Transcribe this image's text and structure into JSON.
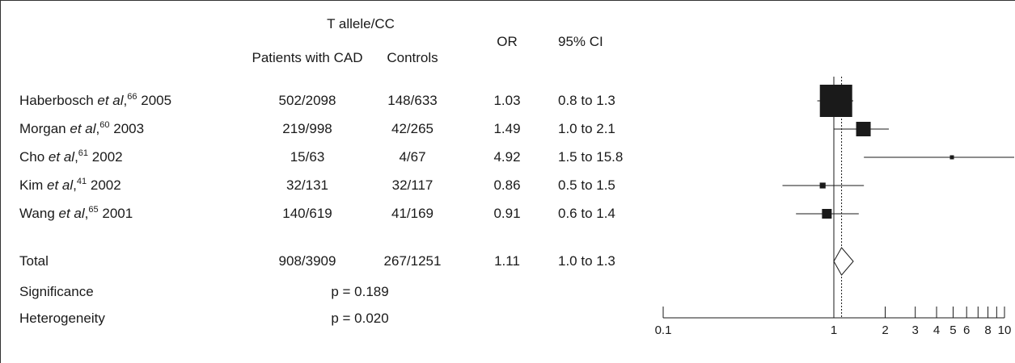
{
  "header": {
    "group_label": "T allele/CC",
    "patients_label": "Patients with CAD",
    "controls_label": "Controls",
    "or_label": "OR",
    "ci_label": "95% CI"
  },
  "studies": [
    {
      "author": "Haberbosch",
      "etal": "et al",
      "ref": "66",
      "year": "2005",
      "patients": "502/2098",
      "controls": "148/633",
      "or_text": "1.03",
      "ci_text": "0.8 to 1.3"
    },
    {
      "author": "Morgan",
      "etal": "et al",
      "ref": "60",
      "year": "2003",
      "patients": "219/998",
      "controls": "42/265",
      "or_text": "1.49",
      "ci_text": "1.0 to 2.1"
    },
    {
      "author": "Cho",
      "etal": "et al",
      "ref": "61",
      "year": "2002",
      "patients": "15/63",
      "controls": "4/67",
      "or_text": "4.92",
      "ci_text": "1.5 to 15.8"
    },
    {
      "author": "Kim",
      "etal": "et al",
      "ref": "41",
      "year": "2002",
      "patients": "32/131",
      "controls": "32/117",
      "or_text": "0.86",
      "ci_text": "0.5 to 1.5"
    },
    {
      "author": "Wang",
      "etal": "et al",
      "ref": "65",
      "year": "2001",
      "patients": "140/619",
      "controls": "41/169",
      "or_text": "0.91",
      "ci_text": "0.6 to 1.4"
    }
  ],
  "total": {
    "label": "Total",
    "patients": "908/3909",
    "controls": "267/1251",
    "or_text": "1.11",
    "ci_text": "1.0 to 1.3"
  },
  "significance": {
    "label": "Significance",
    "value": "p = 0.189"
  },
  "heterogeneity": {
    "label": "Heterogeneity",
    "value": "p = 0.020"
  },
  "chart_data": {
    "type": "forest",
    "x_scale": "log",
    "xlim": [
      0.1,
      10
    ],
    "tick_labels": [
      "0.1",
      "1",
      "2",
      "3",
      "4",
      "5",
      "6",
      "8",
      "10"
    ],
    "tick_values": [
      0.1,
      1,
      2,
      3,
      4,
      5,
      6,
      8,
      10
    ],
    "minor_ticks": [
      7,
      9
    ],
    "reference_line": 1,
    "pooled_line": 1.11,
    "points": [
      {
        "or": 1.03,
        "lo": 0.8,
        "hi": 1.3,
        "weight": 1.0
      },
      {
        "or": 1.49,
        "lo": 1.0,
        "hi": 2.1,
        "weight": 0.45
      },
      {
        "or": 4.92,
        "lo": 1.5,
        "hi": 15.8,
        "weight": 0.12
      },
      {
        "or": 0.86,
        "lo": 0.5,
        "hi": 1.5,
        "weight": 0.18
      },
      {
        "or": 0.91,
        "lo": 0.6,
        "hi": 1.4,
        "weight": 0.3
      }
    ],
    "pooled": {
      "or": 1.11,
      "lo": 1.0,
      "hi": 1.3
    }
  }
}
